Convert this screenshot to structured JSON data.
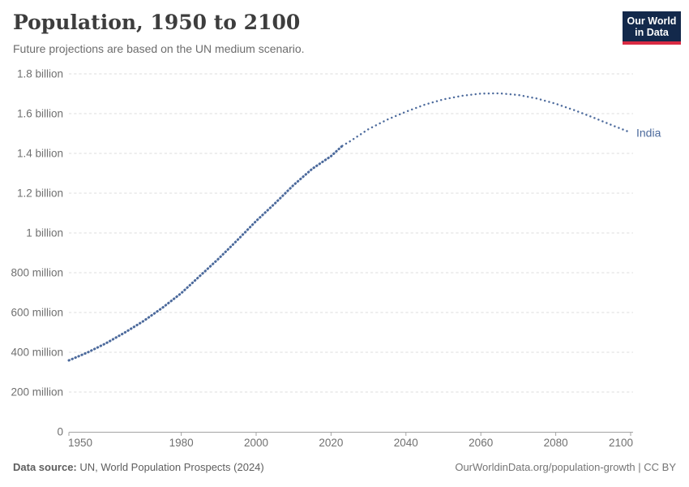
{
  "header": {
    "title": "Population, 1950 to 2100",
    "subtitle": "Future projections are based on the UN medium scenario.",
    "logo": {
      "line1": "Our World",
      "line2": "in Data"
    }
  },
  "footer": {
    "source_label": "Data source:",
    "source_text": " UN, World Population Prospects (2024)",
    "link_text": "OurWorldinData.org/population-growth | CC BY"
  },
  "colors": {
    "series_blue": "#4c6a9c",
    "gridline": "#dcdcdc",
    "axis": "#a3a3a3",
    "tick_text": "#707070",
    "logo_navy": "#13294b",
    "logo_red": "#d92b43"
  },
  "chart_data": {
    "type": "line",
    "title": "Population, 1950 to 2100",
    "subtitle": "Future projections are based on the UN medium scenario.",
    "xlabel": "",
    "ylabel": "",
    "unit": "billions of people",
    "xlim": [
      1950,
      2100
    ],
    "ylim": [
      0,
      1.8
    ],
    "grid": "horizontal dashed",
    "legend_position": "end-of-line label",
    "x_ticks": [
      1950,
      1980,
      2000,
      2020,
      2040,
      2060,
      2080,
      2100
    ],
    "y_ticks": [
      {
        "value": 0,
        "label": "0"
      },
      {
        "value": 0.2,
        "label": "200 million"
      },
      {
        "value": 0.4,
        "label": "400 million"
      },
      {
        "value": 0.6,
        "label": "600 million"
      },
      {
        "value": 0.8,
        "label": "800 million"
      },
      {
        "value": 1,
        "label": "1 billion"
      },
      {
        "value": 1.2,
        "label": "1.2 billion"
      },
      {
        "value": 1.4,
        "label": "1.4 billion"
      },
      {
        "value": 1.6,
        "label": "1.6 billion"
      },
      {
        "value": 1.8,
        "label": "1.8 billion"
      }
    ],
    "series": [
      {
        "name": "India",
        "color": "#4c6a9c",
        "style_historical": "dense dotted (appears solid)",
        "style_projection": "dotted",
        "projection_start_year": 2023,
        "points": [
          [
            1950,
            0.359
          ],
          [
            1955,
            0.399
          ],
          [
            1960,
            0.446
          ],
          [
            1965,
            0.5
          ],
          [
            1970,
            0.558
          ],
          [
            1975,
            0.624
          ],
          [
            1980,
            0.697
          ],
          [
            1985,
            0.784
          ],
          [
            1990,
            0.871
          ],
          [
            1995,
            0.964
          ],
          [
            2000,
            1.06
          ],
          [
            2005,
            1.148
          ],
          [
            2010,
            1.241
          ],
          [
            2015,
            1.323
          ],
          [
            2020,
            1.386
          ],
          [
            2023,
            1.438
          ],
          [
            2025,
            1.46
          ],
          [
            2030,
            1.522
          ],
          [
            2035,
            1.57
          ],
          [
            2040,
            1.61
          ],
          [
            2045,
            1.645
          ],
          [
            2050,
            1.672
          ],
          [
            2055,
            1.69
          ],
          [
            2060,
            1.701
          ],
          [
            2065,
            1.702
          ],
          [
            2070,
            1.694
          ],
          [
            2075,
            1.676
          ],
          [
            2080,
            1.65
          ],
          [
            2085,
            1.617
          ],
          [
            2090,
            1.581
          ],
          [
            2095,
            1.542
          ],
          [
            2100,
            1.505
          ]
        ]
      }
    ]
  }
}
